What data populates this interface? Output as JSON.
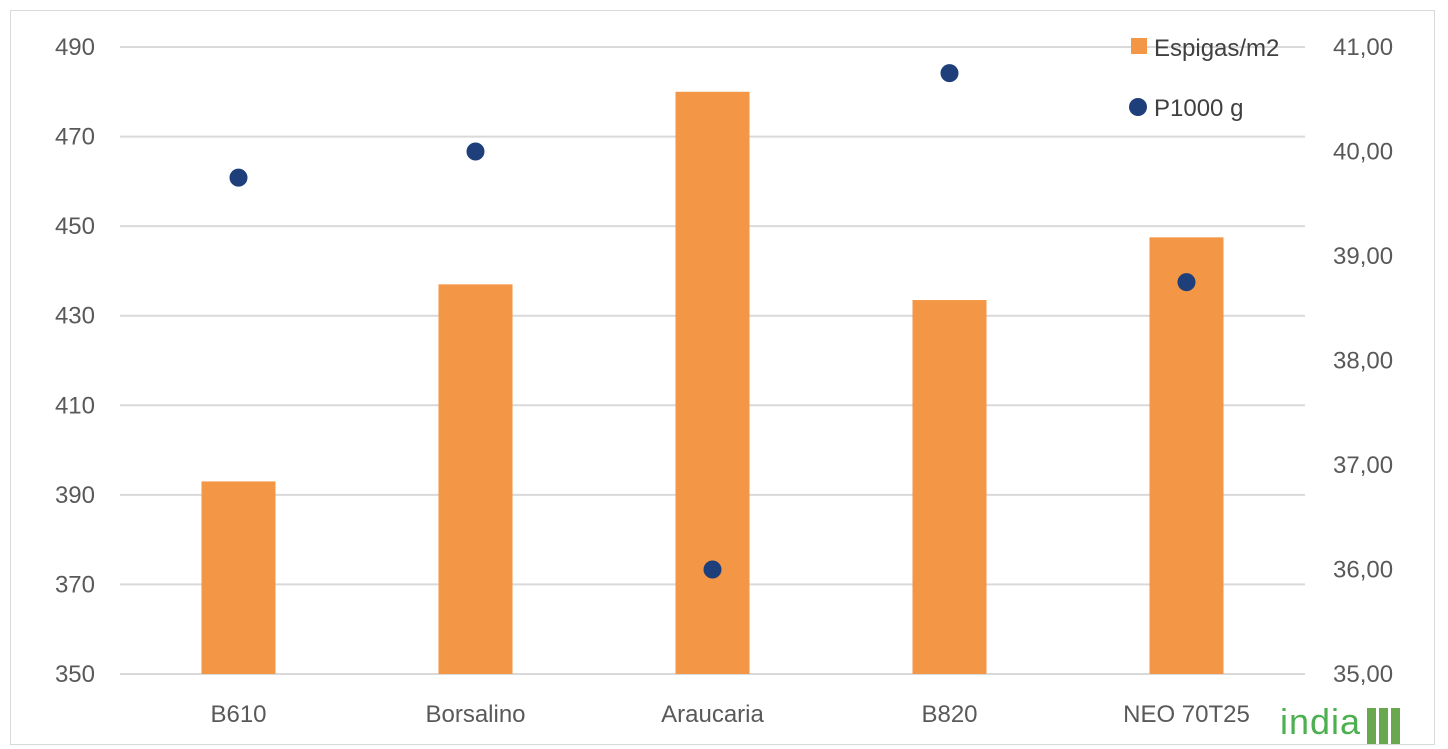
{
  "chart_data": {
    "type": "bar",
    "categories": [
      "B610",
      "Borsalino",
      "Araucaria",
      "B820",
      "NEO 70T25"
    ],
    "series": [
      {
        "name": "Espigas/m2",
        "type": "bar",
        "axis": "left",
        "color": "#f39645",
        "values": [
          393,
          437,
          480,
          433.5,
          447.5
        ]
      },
      {
        "name": "P1000 g",
        "type": "scatter",
        "axis": "right",
        "color": "#1f3f7a",
        "values": [
          39.75,
          40.0,
          36.0,
          40.75,
          38.75
        ]
      }
    ],
    "y_left": {
      "ylim": [
        350,
        490
      ],
      "ticks": [
        "350",
        "370",
        "390",
        "410",
        "430",
        "450",
        "470",
        "490"
      ]
    },
    "y_right": {
      "ylim": [
        35,
        41
      ],
      "ticks": [
        "35,00",
        "36,00",
        "37,00",
        "38,00",
        "39,00",
        "40,00",
        "41,00"
      ]
    },
    "grid": true,
    "legend": "top-right"
  },
  "watermark": {
    "text": "india"
  }
}
